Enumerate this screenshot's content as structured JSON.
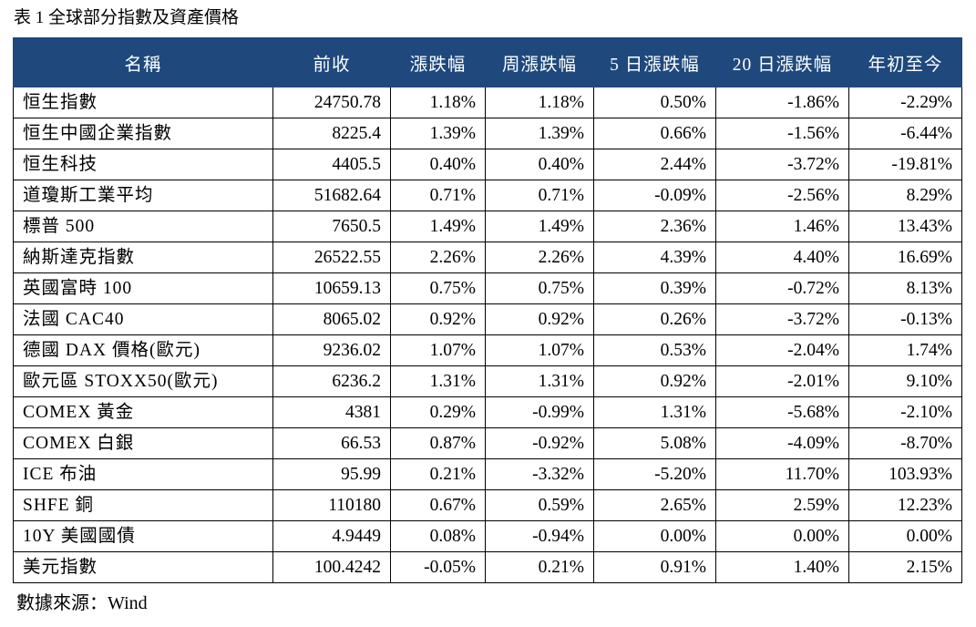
{
  "caption": "表 1 全球部分指數及資產價格",
  "source_note": "數據來源：Wind",
  "table": {
    "headers": [
      "名稱",
      "前收",
      "漲跌幅",
      "周漲跌幅",
      "5 日漲跌幅",
      "20 日漲跌幅",
      "年初至今"
    ],
    "rows": [
      {
        "name": "恒生指數",
        "close": "24750.78",
        "change": "1.18%",
        "week": "1.18%",
        "d5": "0.50%",
        "d20": "-1.86%",
        "ytd": "-2.29%"
      },
      {
        "name": "恒生中國企業指數",
        "close": "8225.4",
        "change": "1.39%",
        "week": "1.39%",
        "d5": "0.66%",
        "d20": "-1.56%",
        "ytd": "-6.44%"
      },
      {
        "name": "恒生科技",
        "close": "4405.5",
        "change": "0.40%",
        "week": "0.40%",
        "d5": "2.44%",
        "d20": "-3.72%",
        "ytd": "-19.81%"
      },
      {
        "name": "道瓊斯工業平均",
        "close": "51682.64",
        "change": "0.71%",
        "week": "0.71%",
        "d5": "-0.09%",
        "d20": "-2.56%",
        "ytd": "8.29%"
      },
      {
        "name": "標普 500",
        "close": "7650.5",
        "change": "1.49%",
        "week": "1.49%",
        "d5": "2.36%",
        "d20": "1.46%",
        "ytd": "13.43%"
      },
      {
        "name": "納斯達克指數",
        "close": "26522.55",
        "change": "2.26%",
        "week": "2.26%",
        "d5": "4.39%",
        "d20": "4.40%",
        "ytd": "16.69%"
      },
      {
        "name": "英國富時 100",
        "close": "10659.13",
        "change": "0.75%",
        "week": "0.75%",
        "d5": "0.39%",
        "d20": "-0.72%",
        "ytd": "8.13%"
      },
      {
        "name": "法國 CAC40",
        "close": "8065.02",
        "change": "0.92%",
        "week": "0.92%",
        "d5": "0.26%",
        "d20": "-3.72%",
        "ytd": "-0.13%"
      },
      {
        "name": "德國 DAX 價格(歐元)",
        "close": "9236.02",
        "change": "1.07%",
        "week": "1.07%",
        "d5": "0.53%",
        "d20": "-2.04%",
        "ytd": "1.74%"
      },
      {
        "name": "歐元區 STOXX50(歐元)",
        "close": "6236.2",
        "change": "1.31%",
        "week": "1.31%",
        "d5": "0.92%",
        "d20": "-2.01%",
        "ytd": "9.10%"
      },
      {
        "name": "COMEX 黃金",
        "close": "4381",
        "change": "0.29%",
        "week": "-0.99%",
        "d5": "1.31%",
        "d20": "-5.68%",
        "ytd": "-2.10%"
      },
      {
        "name": "COMEX 白銀",
        "close": "66.53",
        "change": "0.87%",
        "week": "-0.92%",
        "d5": "5.08%",
        "d20": "-4.09%",
        "ytd": "-8.70%"
      },
      {
        "name": "ICE 布油",
        "close": "95.99",
        "change": "0.21%",
        "week": "-3.32%",
        "d5": "-5.20%",
        "d20": "11.70%",
        "ytd": "103.93%"
      },
      {
        "name": "SHFE 銅",
        "close": "110180",
        "change": "0.67%",
        "week": "0.59%",
        "d5": "2.65%",
        "d20": "2.59%",
        "ytd": "12.23%"
      },
      {
        "name": "10Y 美國國債",
        "close": "4.9449",
        "change": "0.08%",
        "week": "-0.94%",
        "d5": "0.00%",
        "d20": "0.00%",
        "ytd": "0.00%"
      },
      {
        "name": "美元指數",
        "close": "100.4242",
        "change": "-0.05%",
        "week": "0.21%",
        "d5": "0.91%",
        "d20": "1.40%",
        "ytd": "2.15%"
      }
    ]
  },
  "colors": {
    "header_background": "#1f497d",
    "header_text": "#ffffff",
    "grid_line": "#000000"
  }
}
